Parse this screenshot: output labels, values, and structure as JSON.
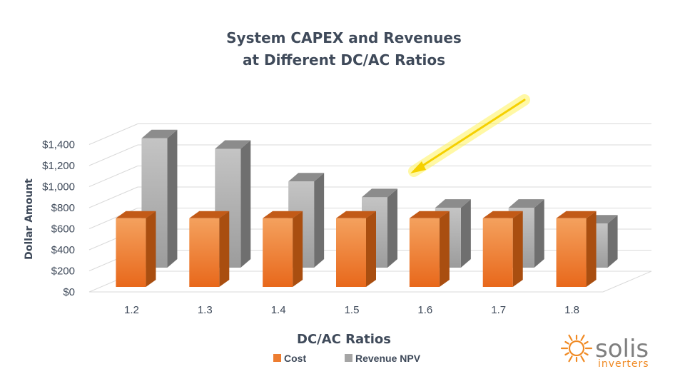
{
  "chart_data": {
    "type": "bar",
    "title_line1": "System CAPEX and Revenues",
    "title_line2": "at Different DC/AC Ratios",
    "xlabel": "DC/AC Ratios",
    "ylabel": "Dollar Amount",
    "categories": [
      "1.2",
      "1.3",
      "1.4",
      "1.5",
      "1.6",
      "1.7",
      "1.8"
    ],
    "series": [
      {
        "name": "Cost",
        "values": [
          700,
          700,
          700,
          700,
          700,
          700,
          700
        ],
        "color": "#ed7d31"
      },
      {
        "name": "Revenue NPV",
        "values": [
          1310,
          1210,
          900,
          750,
          650,
          650,
          500
        ],
        "color": "#a5a5a5"
      }
    ],
    "ylim": [
      0,
      1400
    ],
    "yticks": [
      "$0",
      "$200",
      "$400",
      "$600",
      "$800",
      "$1,000",
      "$1,200",
      "$1,400"
    ],
    "grid": true,
    "legend_position": "bottom",
    "annotation": "yellow arrow pointing to 1.5–1.6 ratio"
  },
  "brand": {
    "name": "solis",
    "tagline": "inverters",
    "color_orange": "#f08a24",
    "color_gray": "#7f7f7f"
  }
}
